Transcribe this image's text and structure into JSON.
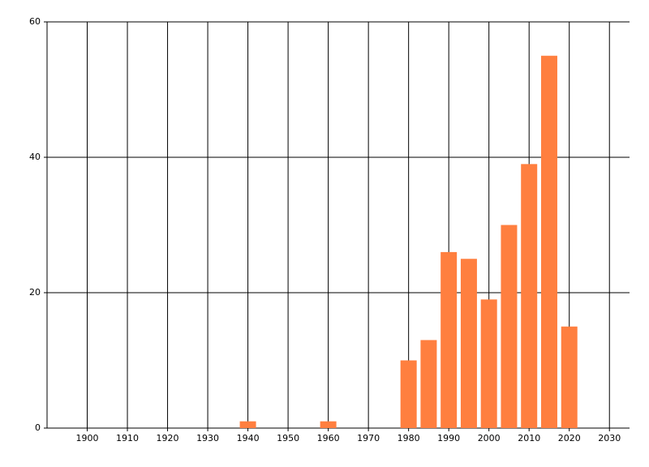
{
  "chart_data": {
    "type": "bar",
    "x": [
      1940,
      1960,
      1980,
      1985,
      1990,
      1995,
      2000,
      2005,
      2010,
      2015,
      2020
    ],
    "values": [
      1,
      1,
      10,
      13,
      26,
      25,
      19,
      30,
      39,
      55,
      15
    ],
    "color": "#ff7f3f",
    "xlim": [
      1890,
      2035
    ],
    "xticks": [
      1900,
      1910,
      1920,
      1930,
      1940,
      1950,
      1960,
      1970,
      1980,
      1990,
      2000,
      2010,
      2020,
      2030
    ],
    "ylim": [
      0,
      60
    ],
    "yticks": [
      0,
      20,
      40,
      60
    ],
    "grid": true
  }
}
